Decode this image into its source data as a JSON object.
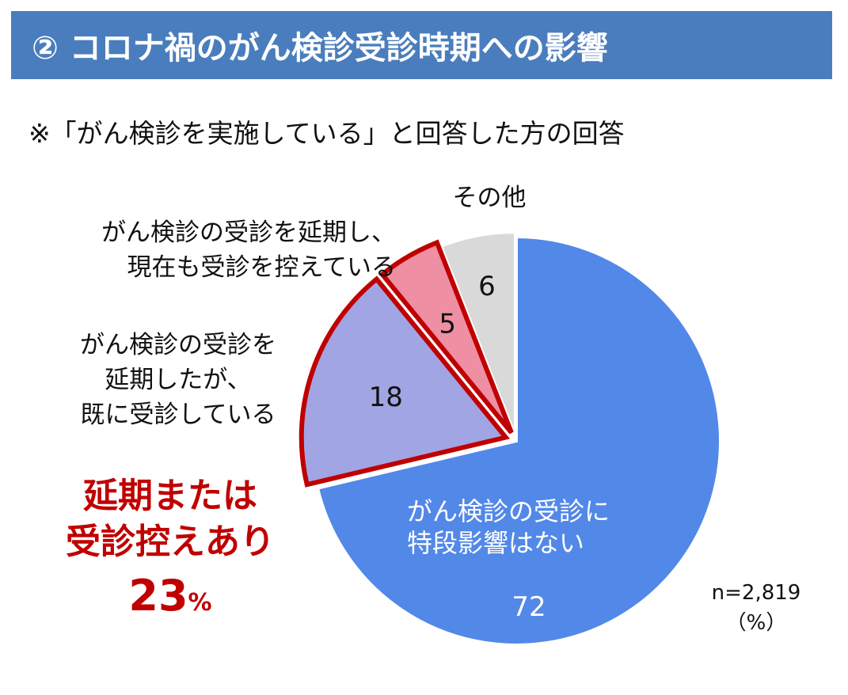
{
  "header": {
    "title": "② コロナ禍のがん検診受診時期への影響"
  },
  "note": "※「がん検診を実施している」と回答した方の回答",
  "chart_data": {
    "type": "pie",
    "slices": [
      {
        "label_lines": [
          "がん検診の受診に",
          "特段影響はない"
        ],
        "value": 72,
        "value_label": "72",
        "color": "#5288e8"
      },
      {
        "label_lines": [
          "がん検診の受診を",
          "延期したが、",
          "既に受診している"
        ],
        "value": 18,
        "value_label": "18",
        "color": "#a2a5e4"
      },
      {
        "label_lines": [
          "がん検診の受診を延期し、",
          "現在も受診を控えている"
        ],
        "value": 5,
        "value_label": "5",
        "color": "#ee8fa3"
      },
      {
        "label_lines": [
          "その他"
        ],
        "value": 6,
        "value_label": "6",
        "color": "#d9d9d9"
      }
    ],
    "highlight": {
      "slices": [
        1,
        2
      ],
      "color": "#c00000"
    },
    "summary": {
      "lines": [
        "延期または",
        "受診控えあり"
      ],
      "value": "23",
      "unit": "%"
    },
    "sample": "n=2,819",
    "unit": "（%）"
  }
}
